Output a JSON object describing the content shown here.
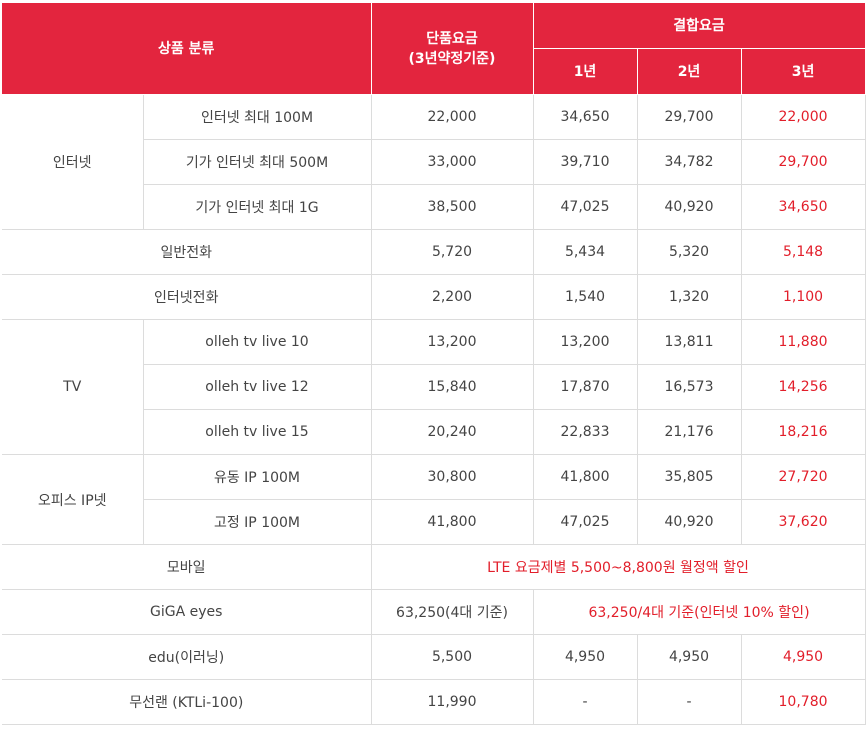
{
  "header": {
    "category": "상품 분류",
    "single_price_line1": "단품요금",
    "single_price_line2": "(3년약정기준)",
    "combined": "결합요금",
    "year1": "1년",
    "year2": "2년",
    "year3": "3년"
  },
  "groups": {
    "internet": "인터넷",
    "tv": "TV",
    "office_ip": "오피스 IP넷"
  },
  "rows": {
    "internet_100m": {
      "name": "인터넷 최대 100M",
      "single": "22,000",
      "y1": "34,650",
      "y2": "29,700",
      "y3": "22,000"
    },
    "giga_500m": {
      "name": "기가 인터넷 최대 500M",
      "single": "33,000",
      "y1": "39,710",
      "y2": "34,782",
      "y3": "29,700"
    },
    "giga_1g": {
      "name": "기가 인터넷 최대 1G",
      "single": "38,500",
      "y1": "47,025",
      "y2": "40,920",
      "y3": "34,650"
    },
    "general_phone": {
      "name": "일반전화",
      "single": "5,720",
      "y1": "5,434",
      "y2": "5,320",
      "y3": "5,148"
    },
    "internet_phone": {
      "name": "인터넷전화",
      "single": "2,200",
      "y1": "1,540",
      "y2": "1,320",
      "y3": "1,100"
    },
    "tv_10": {
      "name": "olleh tv live 10",
      "single": "13,200",
      "y1": "13,200",
      "y2": "13,811",
      "y3": "11,880"
    },
    "tv_12": {
      "name": "olleh tv live 12",
      "single": "15,840",
      "y1": "17,870",
      "y2": "16,573",
      "y3": "14,256"
    },
    "tv_15": {
      "name": "olleh tv live 15",
      "single": "20,240",
      "y1": "22,833",
      "y2": "21,176",
      "y3": "18,216"
    },
    "dynamic_ip": {
      "name": "유동 IP 100M",
      "single": "30,800",
      "y1": "41,800",
      "y2": "35,805",
      "y3": "27,720"
    },
    "static_ip": {
      "name": "고정 IP 100M",
      "single": "41,800",
      "y1": "47,025",
      "y2": "40,920",
      "y3": "37,620"
    },
    "mobile": {
      "name": "모바일",
      "note": "LTE 요금제별 5,500~8,800원 월정액 할인"
    },
    "giga_eyes": {
      "name": "GiGA eyes",
      "single": "63,250(4대 기준)",
      "note": "63,250/4대 기준(인터넷 10% 할인)"
    },
    "edu": {
      "name": "edu(이러닝)",
      "single": "5,500",
      "y1": "4,950",
      "y2": "4,950",
      "y3": "4,950"
    },
    "wifi": {
      "name": "무선랜 (KTLi-100)",
      "single": "11,990",
      "y1": "-",
      "y2": "-",
      "y3": "10,780"
    }
  },
  "colors": {
    "header_bg": "#e3253e",
    "accent_red": "#e21e2a",
    "text": "#444444",
    "border": "#dcdcdc"
  }
}
